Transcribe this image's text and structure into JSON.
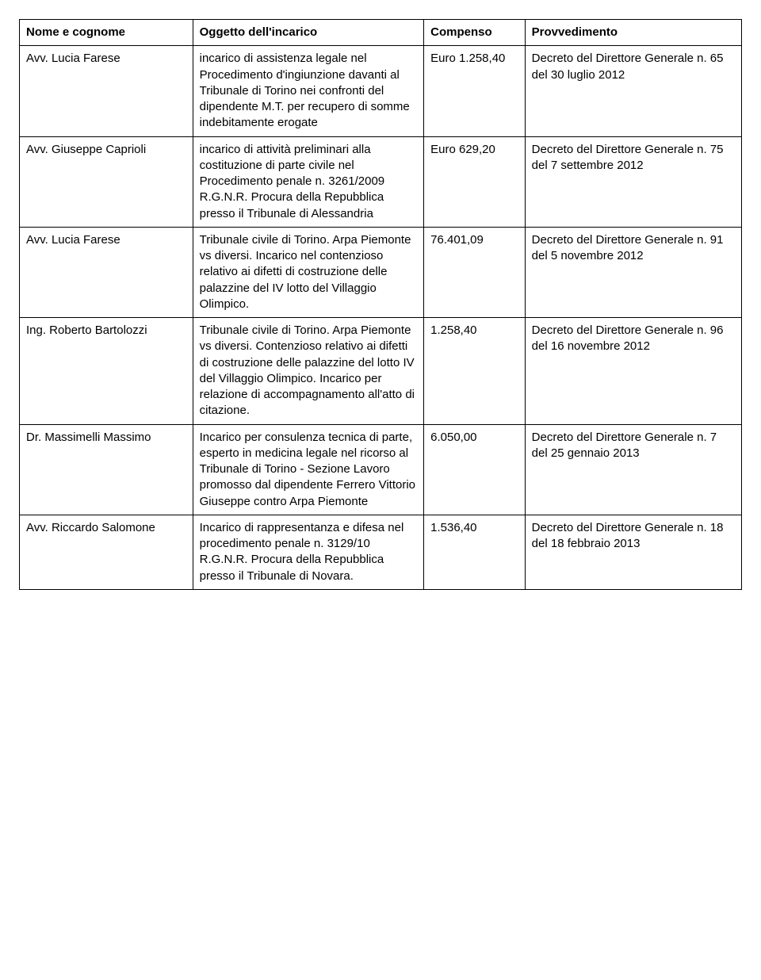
{
  "table": {
    "columns": [
      "Nome e cognome",
      "Oggetto dell'incarico",
      "Compenso",
      "Provvedimento"
    ],
    "col_classes": [
      "col-name",
      "col-object",
      "col-comp",
      "col-prov"
    ],
    "header_fontweight": "bold",
    "border_color": "#000000",
    "background_color": "#ffffff",
    "text_color": "#000000",
    "fontsize": 15,
    "rows": [
      {
        "name": "Avv. Lucia Farese",
        "object": "incarico di assistenza legale nel Procedimento d'ingiunzione davanti al Tribunale di Torino nei confronti del dipendente M.T. per recupero di somme indebitamente erogate",
        "comp": "Euro 1.258,40",
        "prov": "Decreto del Direttore Generale n. 65 del 30 luglio 2012"
      },
      {
        "name": "Avv. Giuseppe Caprioli",
        "object": "incarico di attività preliminari alla costituzione di parte civile nel Procedimento penale n. 3261/2009 R.G.N.R. Procura della Repubblica presso il Tribunale di Alessandria",
        "comp": "Euro 629,20",
        "prov": "Decreto del Direttore Generale n. 75 del 7 settembre 2012"
      },
      {
        "name": "Avv. Lucia Farese",
        "object": "Tribunale civile di Torino. Arpa Piemonte vs diversi. Incarico nel contenzioso relativo ai difetti di costruzione delle palazzine del IV lotto del Villaggio Olimpico.",
        "comp": "76.401,09",
        "prov": "Decreto del Direttore Generale n. 91 del 5 novembre 2012"
      },
      {
        "name": "Ing. Roberto Bartolozzi",
        "object": "Tribunale civile di Torino. Arpa Piemonte vs diversi. Contenzioso relativo ai difetti di costruzione delle palazzine del lotto IV del Villaggio Olimpico. Incarico per relazione di accompagnamento all'atto di citazione.",
        "comp": "1.258,40",
        "prov": "Decreto del Direttore Generale n. 96 del 16 novembre 2012"
      },
      {
        "name": "Dr. Massimelli Massimo",
        "object": "Incarico per consulenza tecnica di parte, esperto in medicina legale nel ricorso al Tribunale di Torino - Sezione Lavoro promosso dal dipendente Ferrero Vittorio Giuseppe contro Arpa Piemonte",
        "comp": "6.050,00",
        "prov": "Decreto del Direttore Generale n. 7 del 25 gennaio 2013"
      },
      {
        "name": "Avv. Riccardo Salomone",
        "object": "Incarico di rappresentanza e difesa nel procedimento penale n. 3129/10 R.G.N.R. Procura della Repubblica presso il Tribunale di Novara.",
        "comp": "1.536,40",
        "prov": "Decreto del Direttore Generale n. 18 del 18 febbraio 2013"
      }
    ]
  }
}
